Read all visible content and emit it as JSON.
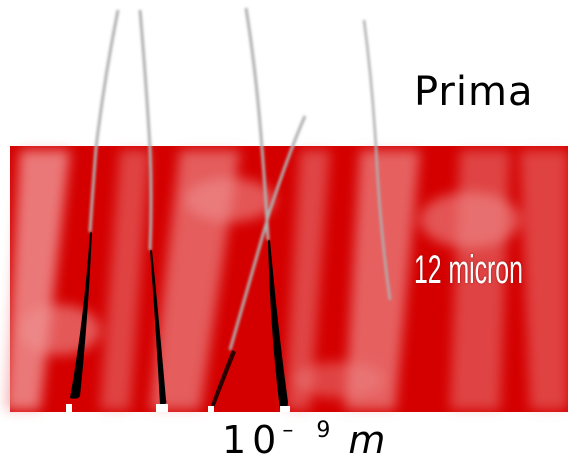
{
  "labels": {
    "before": "Prima",
    "thickness": "12 micron",
    "scale_base": "10",
    "scale_exponent": "– 9",
    "scale_unit": "m"
  },
  "colors": {
    "film": "#d40000",
    "film_highlight": "#f08a8a",
    "fiber": "#b8b8b8",
    "gap": "#000000"
  }
}
